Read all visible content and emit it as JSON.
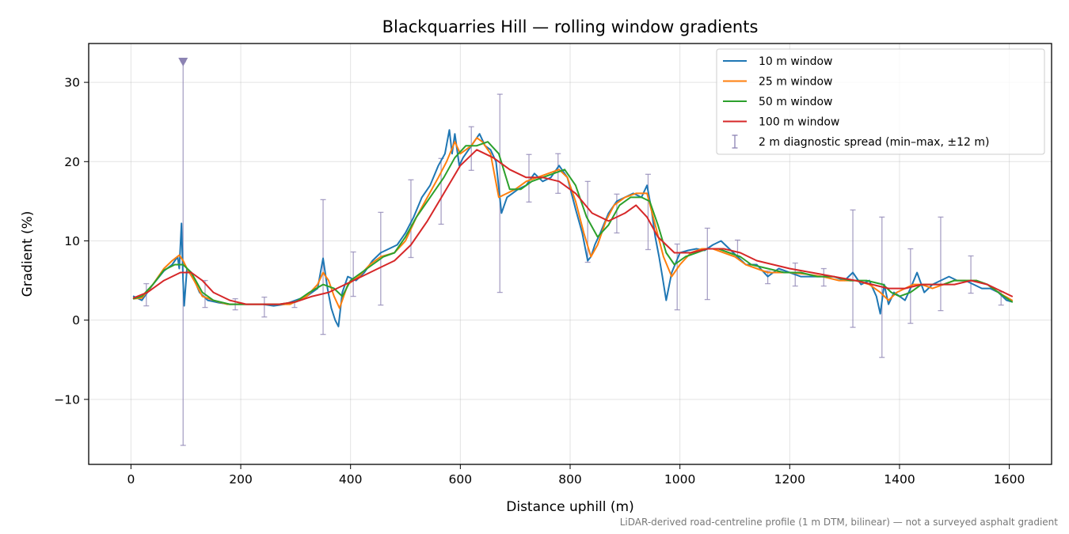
{
  "chart_data": {
    "type": "line",
    "title": "Blackquarries Hill — rolling window gradients",
    "xlabel": "Distance uphill (m)",
    "ylabel": "Gradient (%)",
    "xlim": [
      -77,
      1677
    ],
    "ylim": [
      -18.2,
      34.9
    ],
    "x_ticks": [
      0,
      200,
      400,
      600,
      800,
      1000,
      1200,
      1400,
      1600
    ],
    "x_tick_labels": [
      "0",
      "200",
      "400",
      "600",
      "800",
      "1000",
      "1200",
      "1400",
      "1600"
    ],
    "y_ticks": [
      -10,
      0,
      10,
      20,
      30
    ],
    "y_tick_labels": [
      "−10",
      "0",
      "10",
      "20",
      "30"
    ],
    "grid": true,
    "legend_position": "top-right",
    "series": [
      {
        "name": "10 m window",
        "color": "#1f77b4",
        "x": [
          5,
          20,
          40,
          60,
          75,
          85,
          88,
          92,
          95,
          97,
          102,
          110,
          125,
          140,
          160,
          180,
          200,
          220,
          240,
          260,
          280,
          300,
          320,
          340,
          350,
          358,
          365,
          372,
          378,
          385,
          395,
          410,
          425,
          440,
          455,
          470,
          485,
          500,
          515,
          530,
          545,
          560,
          572,
          580,
          585,
          590,
          598,
          605,
          615,
          625,
          635,
          645,
          655,
          665,
          675,
          685,
          695,
          705,
          720,
          735,
          750,
          765,
          780,
          795,
          810,
          822,
          832,
          838,
          845,
          855,
          870,
          885,
          900,
          915,
          930,
          940,
          948,
          955,
          962,
          968,
          975,
          985,
          1000,
          1015,
          1030,
          1045,
          1060,
          1075,
          1090,
          1105,
          1120,
          1140,
          1160,
          1180,
          1200,
          1220,
          1240,
          1260,
          1280,
          1300,
          1315,
          1330,
          1345,
          1358,
          1365,
          1372,
          1380,
          1390,
          1400,
          1410,
          1420,
          1432,
          1445,
          1460,
          1475,
          1490,
          1505,
          1520,
          1535,
          1550,
          1565,
          1580,
          1595,
          1605
        ],
        "values": [
          3.0,
          2.5,
          4.5,
          6.2,
          7.0,
          8.0,
          6.5,
          12.2,
          5.0,
          1.8,
          6.5,
          6.0,
          3.5,
          2.5,
          2.2,
          2.0,
          2.0,
          2.0,
          2.0,
          1.8,
          2.0,
          2.5,
          3.0,
          4.0,
          7.8,
          4.0,
          1.5,
          0.0,
          -0.8,
          3.5,
          5.5,
          5.0,
          6.0,
          7.5,
          8.5,
          9.0,
          9.5,
          11.0,
          13.0,
          15.5,
          17.0,
          19.5,
          21.0,
          24.0,
          21.0,
          23.5,
          19.5,
          20.5,
          21.5,
          22.5,
          23.5,
          22.0,
          21.5,
          20.0,
          13.5,
          15.5,
          16.0,
          16.5,
          17.0,
          18.5,
          17.5,
          18.0,
          19.5,
          18.0,
          14.0,
          11.0,
          7.5,
          8.0,
          9.5,
          11.0,
          13.5,
          15.0,
          15.5,
          16.0,
          15.5,
          17.0,
          14.0,
          10.5,
          8.0,
          5.5,
          2.5,
          6.0,
          8.5,
          8.8,
          9.0,
          8.8,
          9.5,
          10.0,
          9.0,
          8.0,
          7.0,
          7.0,
          5.5,
          6.5,
          6.0,
          5.5,
          5.5,
          5.5,
          5.5,
          5.0,
          6.0,
          4.5,
          5.0,
          3.0,
          0.8,
          4.5,
          2.0,
          3.5,
          3.0,
          2.5,
          4.0,
          6.0,
          3.5,
          4.5,
          5.0,
          5.5,
          5.0,
          5.0,
          4.5,
          4.0,
          4.0,
          3.5,
          2.5,
          2.3
        ]
      },
      {
        "name": "25 m window",
        "color": "#ff7f0e",
        "x": [
          5,
          20,
          40,
          60,
          75,
          88,
          95,
          102,
          115,
          130,
          150,
          175,
          200,
          230,
          260,
          290,
          320,
          340,
          350,
          360,
          370,
          380,
          395,
          415,
          435,
          455,
          480,
          500,
          520,
          540,
          560,
          575,
          590,
          600,
          610,
          620,
          630,
          640,
          655,
          670,
          685,
          700,
          720,
          740,
          760,
          780,
          795,
          810,
          825,
          838,
          850,
          865,
          880,
          900,
          920,
          940,
          955,
          970,
          985,
          1000,
          1020,
          1040,
          1060,
          1080,
          1100,
          1120,
          1140,
          1160,
          1180,
          1200,
          1230,
          1260,
          1290,
          1320,
          1345,
          1365,
          1380,
          1395,
          1410,
          1425,
          1440,
          1460,
          1480,
          1500,
          1520,
          1540,
          1560,
          1580,
          1605
        ],
        "values": [
          2.7,
          2.8,
          4.5,
          6.5,
          7.5,
          8.2,
          7.5,
          6.5,
          5.0,
          3.0,
          2.5,
          2.0,
          2.0,
          2.0,
          2.0,
          2.0,
          3.0,
          4.5,
          6.0,
          5.0,
          3.0,
          1.5,
          4.5,
          5.5,
          7.0,
          8.0,
          8.5,
          10.0,
          13.0,
          15.5,
          18.0,
          20.0,
          22.5,
          21.0,
          21.5,
          22.0,
          23.0,
          22.5,
          21.0,
          15.5,
          16.0,
          16.5,
          17.5,
          18.0,
          18.5,
          19.0,
          18.0,
          15.0,
          11.0,
          8.0,
          9.5,
          12.5,
          14.5,
          15.5,
          16.0,
          16.0,
          12.0,
          8.0,
          5.5,
          7.0,
          8.5,
          9.0,
          9.0,
          8.5,
          8.0,
          7.0,
          6.5,
          6.0,
          6.0,
          6.0,
          5.8,
          5.5,
          5.0,
          5.0,
          4.5,
          3.5,
          2.5,
          3.5,
          4.0,
          4.5,
          4.5,
          4.0,
          4.5,
          5.0,
          5.0,
          5.0,
          4.5,
          3.5,
          2.5
        ]
      },
      {
        "name": "50 m window",
        "color": "#2ca02c",
        "x": [
          5,
          20,
          40,
          60,
          80,
          95,
          110,
          130,
          150,
          180,
          210,
          240,
          270,
          300,
          325,
          350,
          370,
          385,
          400,
          420,
          440,
          460,
          480,
          500,
          520,
          545,
          570,
          590,
          610,
          630,
          650,
          670,
          690,
          710,
          730,
          750,
          770,
          790,
          810,
          830,
          850,
          870,
          890,
          910,
          930,
          945,
          960,
          975,
          990,
          1010,
          1030,
          1050,
          1070,
          1090,
          1110,
          1130,
          1160,
          1190,
          1220,
          1250,
          1280,
          1310,
          1340,
          1370,
          1385,
          1400,
          1420,
          1440,
          1460,
          1480,
          1500,
          1520,
          1540,
          1560,
          1580,
          1605
        ],
        "values": [
          2.7,
          3.0,
          4.5,
          6.3,
          7.0,
          7.0,
          6.0,
          3.5,
          2.5,
          2.0,
          2.0,
          2.0,
          2.0,
          2.3,
          3.5,
          4.5,
          4.0,
          3.0,
          5.0,
          6.0,
          7.0,
          8.0,
          8.5,
          10.5,
          13.0,
          15.5,
          18.0,
          20.5,
          22.0,
          22.0,
          22.5,
          21.0,
          16.5,
          16.5,
          17.5,
          18.0,
          18.5,
          19.0,
          17.0,
          13.0,
          10.5,
          12.0,
          14.5,
          15.5,
          15.5,
          15.0,
          12.0,
          8.5,
          7.0,
          8.0,
          8.5,
          9.0,
          9.0,
          8.5,
          8.0,
          7.0,
          6.5,
          6.0,
          6.0,
          5.5,
          5.5,
          5.0,
          5.0,
          4.5,
          3.5,
          3.0,
          3.5,
          4.5,
          4.5,
          4.5,
          5.0,
          5.0,
          5.0,
          4.5,
          3.5,
          2.3
        ]
      },
      {
        "name": "100 m window",
        "color": "#d62728",
        "x": [
          5,
          30,
          60,
          90,
          110,
          130,
          150,
          180,
          210,
          240,
          270,
          300,
          330,
          360,
          390,
          420,
          450,
          480,
          510,
          540,
          570,
          600,
          630,
          660,
          690,
          720,
          750,
          780,
          810,
          840,
          870,
          900,
          920,
          940,
          960,
          990,
          1020,
          1050,
          1080,
          1110,
          1140,
          1170,
          1200,
          1240,
          1280,
          1320,
          1350,
          1380,
          1410,
          1440,
          1470,
          1500,
          1530,
          1560,
          1590,
          1605
        ],
        "values": [
          2.8,
          3.5,
          5.0,
          6.0,
          6.0,
          5.0,
          3.5,
          2.5,
          2.0,
          2.0,
          2.0,
          2.3,
          3.0,
          3.5,
          4.5,
          5.5,
          6.5,
          7.5,
          9.5,
          12.5,
          16.0,
          19.5,
          21.5,
          20.5,
          19.0,
          18.0,
          18.0,
          17.5,
          16.0,
          13.5,
          12.5,
          13.5,
          14.5,
          13.0,
          10.5,
          8.5,
          8.5,
          9.0,
          9.0,
          8.5,
          7.5,
          7.0,
          6.5,
          6.0,
          5.5,
          5.0,
          4.5,
          4.0,
          4.0,
          4.5,
          4.5,
          4.5,
          5.0,
          4.5,
          3.5,
          3.0
        ]
      },
      {
        "name": "2 m diagnostic spread (min–max, ±12 m)",
        "color": "#8c83b3",
        "type": "errorbar",
        "x": [
          28,
          95,
          135,
          190,
          243,
          298,
          350,
          405,
          455,
          510,
          565,
          620,
          672,
          725,
          778,
          832,
          885,
          942,
          995,
          1050,
          1105,
          1160,
          1210,
          1262,
          1315,
          1368,
          1420,
          1475,
          1530,
          1585
        ],
        "low": [
          1.8,
          -15.8,
          1.6,
          1.3,
          0.4,
          1.6,
          -1.8,
          3.0,
          1.9,
          7.9,
          12.1,
          18.9,
          3.5,
          14.9,
          16.0,
          7.3,
          11.0,
          8.9,
          1.3,
          2.6,
          8.0,
          4.6,
          4.3,
          4.3,
          -0.9,
          -4.7,
          -0.4,
          1.2,
          3.4,
          1.9
        ],
        "high": [
          4.6,
          32.6,
          5.0,
          2.7,
          2.9,
          2.3,
          15.2,
          8.6,
          13.6,
          17.7,
          20.4,
          24.4,
          28.5,
          20.9,
          21.0,
          17.5,
          15.9,
          18.4,
          9.6,
          11.6,
          10.1,
          6.2,
          7.2,
          6.5,
          13.9,
          13.0,
          9.0,
          13.0,
          8.1,
          3.6
        ],
        "clipped_marker_x": 95
      }
    ],
    "footnote": "LiDAR-derived road-centreline profile (1 m DTM, bilinear) — not a surveyed asphalt gradient"
  }
}
